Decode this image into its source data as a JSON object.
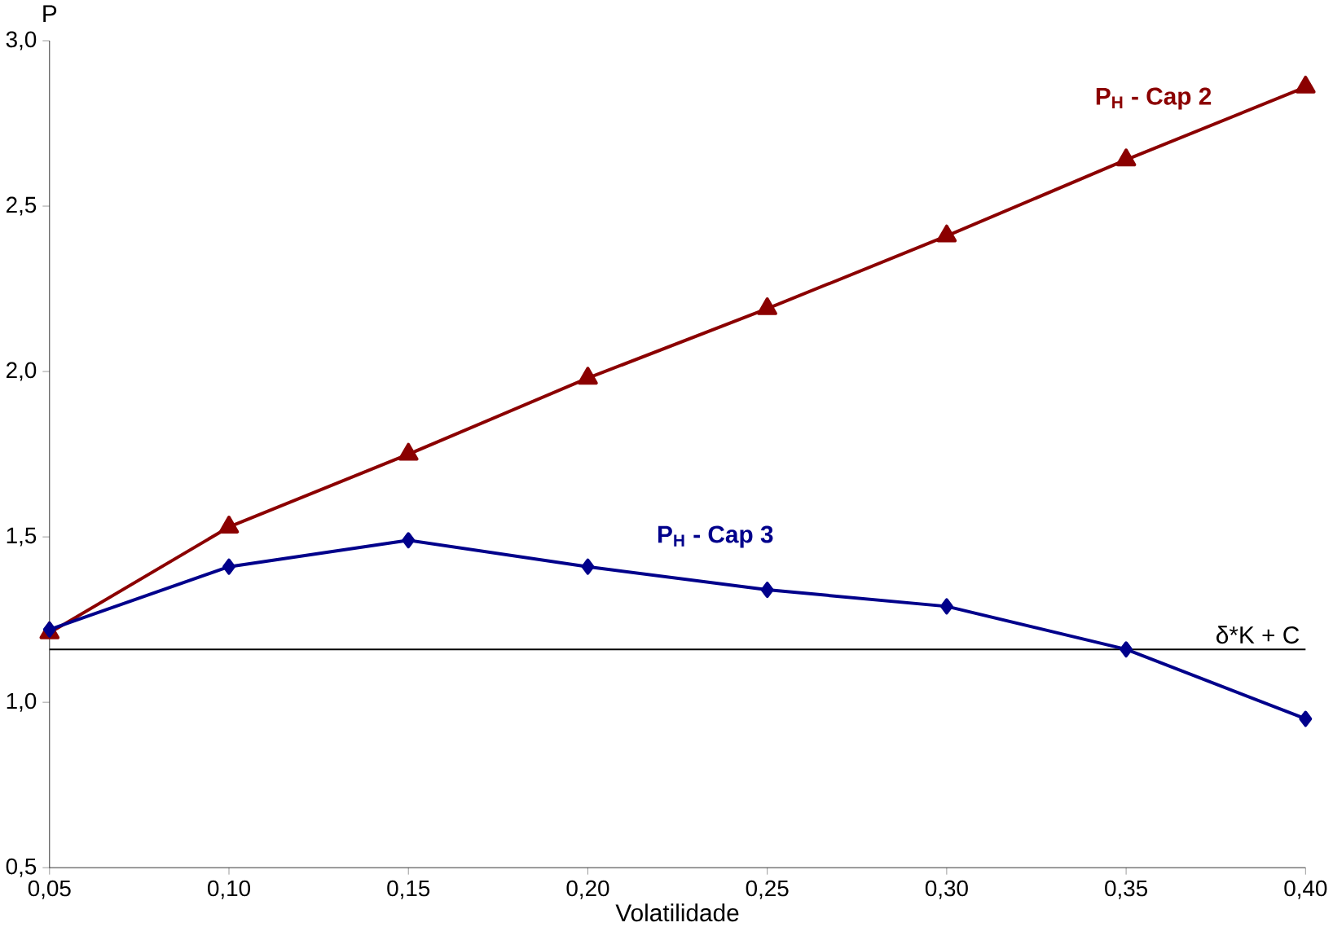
{
  "chart_data": {
    "type": "line",
    "xlabel": "Volatilidade",
    "ylabel": "P",
    "x": [
      0.05,
      0.1,
      0.15,
      0.2,
      0.25,
      0.3,
      0.35,
      0.4
    ],
    "series": [
      {
        "name": "P$_{H}$ - Cap 2",
        "color": "#8b0000",
        "marker": "triangle",
        "values": [
          1.21,
          1.53,
          1.75,
          1.98,
          2.19,
          2.41,
          2.64,
          2.86
        ]
      },
      {
        "name": "P$_{H}$ - Cap 3",
        "color": "#00008b",
        "marker": "diamond",
        "values": [
          1.22,
          1.41,
          1.49,
          1.41,
          1.34,
          1.29,
          1.16,
          0.95
        ]
      }
    ],
    "xlim": [
      0.05,
      0.4
    ],
    "ylim": [
      0.5,
      3.0
    ],
    "xticks": [
      {
        "value": 0.05,
        "label": "0,05"
      },
      {
        "value": 0.1,
        "label": "0,10"
      },
      {
        "value": 0.15,
        "label": "0,15"
      },
      {
        "value": 0.2,
        "label": "0,20"
      },
      {
        "value": 0.25,
        "label": "0,25"
      },
      {
        "value": 0.3,
        "label": "0,30"
      },
      {
        "value": 0.35,
        "label": "0,35"
      },
      {
        "value": 0.4,
        "label": "0,40"
      }
    ],
    "yticks": [
      {
        "value": 0.5,
        "label": "0,5"
      },
      {
        "value": 1.0,
        "label": "1,0"
      },
      {
        "value": 1.5,
        "label": "1,5"
      },
      {
        "value": 2.0,
        "label": "2,0"
      },
      {
        "value": 2.5,
        "label": "2,5"
      },
      {
        "value": 3.0,
        "label": "3,0"
      }
    ],
    "ref_lines": [
      {
        "axis": "y",
        "value": 1.16,
        "label": "δ*K + C",
        "color": "#000000"
      }
    ],
    "grid": false,
    "legend": false,
    "line_style": "solid"
  }
}
